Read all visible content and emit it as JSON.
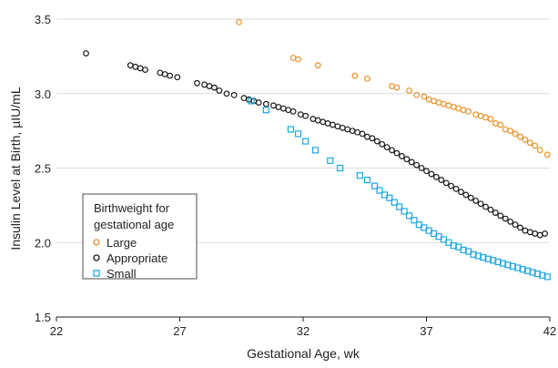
{
  "chart_data": {
    "type": "scatter",
    "xlabel": "Gestational Age, wk",
    "ylabel": "Insulin Level at Birth, µIU/mL",
    "xlim": [
      22,
      42
    ],
    "ylim": [
      1.5,
      3.5
    ],
    "xticks": [
      22,
      27,
      32,
      37,
      42
    ],
    "yticks": [
      1.5,
      2.0,
      2.5,
      3.0,
      3.5
    ],
    "ytick_labels": [
      "1.5",
      "2.0",
      "2.5",
      "3.0",
      "3.5"
    ],
    "grid": "horizontal",
    "legend": {
      "title_lines": [
        "Birthweight for",
        "gestational age"
      ],
      "placement": "lower-left",
      "entries": [
        "Large",
        "Appropriate",
        "Small"
      ]
    },
    "series": [
      {
        "name": "Large",
        "color": "#e8902a",
        "marker": "circle",
        "x": [
          29.4,
          31.6,
          31.8,
          32.6,
          34.1,
          34.6,
          35.6,
          35.8,
          36.3,
          36.6,
          36.9,
          37.1,
          37.3,
          37.5,
          37.7,
          37.9,
          38.1,
          38.3,
          38.5,
          38.7,
          39.0,
          39.2,
          39.4,
          39.6,
          39.8,
          40.0,
          40.2,
          40.4,
          40.6,
          40.8,
          41.0,
          41.2,
          41.4,
          41.6,
          41.9
        ],
        "y": [
          3.48,
          3.24,
          3.23,
          3.19,
          3.12,
          3.1,
          3.05,
          3.04,
          3.02,
          2.99,
          2.98,
          2.96,
          2.95,
          2.94,
          2.93,
          2.92,
          2.91,
          2.9,
          2.89,
          2.88,
          2.86,
          2.85,
          2.84,
          2.83,
          2.8,
          2.79,
          2.76,
          2.75,
          2.73,
          2.71,
          2.69,
          2.67,
          2.65,
          2.62,
          2.59
        ]
      },
      {
        "name": "Appropriate",
        "color": "#1a1a1a",
        "marker": "circle",
        "x": [
          23.2,
          25.0,
          25.2,
          25.4,
          25.6,
          26.2,
          26.4,
          26.6,
          26.9,
          27.7,
          28.0,
          28.2,
          28.4,
          28.6,
          28.9,
          29.2,
          29.6,
          29.8,
          30.0,
          30.2,
          30.5,
          30.8,
          31.0,
          31.2,
          31.4,
          31.6,
          31.9,
          32.1,
          32.4,
          32.6,
          32.8,
          33.0,
          33.2,
          33.4,
          33.6,
          33.8,
          34.0,
          34.2,
          34.4,
          34.6,
          34.8,
          35.0,
          35.2,
          35.4,
          35.6,
          35.8,
          36.0,
          36.2,
          36.4,
          36.6,
          36.8,
          37.0,
          37.2,
          37.4,
          37.6,
          37.8,
          38.0,
          38.2,
          38.4,
          38.6,
          38.8,
          39.0,
          39.2,
          39.4,
          39.6,
          39.8,
          40.0,
          40.2,
          40.4,
          40.6,
          40.8,
          41.0,
          41.2,
          41.4,
          41.6,
          41.8
        ],
        "y": [
          3.27,
          3.19,
          3.18,
          3.17,
          3.16,
          3.14,
          3.13,
          3.12,
          3.11,
          3.07,
          3.06,
          3.05,
          3.04,
          3.02,
          3.0,
          2.99,
          2.97,
          2.96,
          2.95,
          2.94,
          2.93,
          2.92,
          2.91,
          2.9,
          2.89,
          2.88,
          2.86,
          2.85,
          2.83,
          2.82,
          2.81,
          2.8,
          2.79,
          2.78,
          2.77,
          2.76,
          2.75,
          2.74,
          2.73,
          2.71,
          2.7,
          2.68,
          2.66,
          2.64,
          2.62,
          2.6,
          2.58,
          2.56,
          2.54,
          2.52,
          2.5,
          2.48,
          2.46,
          2.44,
          2.42,
          2.4,
          2.38,
          2.36,
          2.34,
          2.32,
          2.3,
          2.28,
          2.26,
          2.24,
          2.22,
          2.2,
          2.18,
          2.16,
          2.14,
          2.12,
          2.1,
          2.08,
          2.07,
          2.06,
          2.05,
          2.06
        ]
      },
      {
        "name": "Small",
        "color": "#1ea7e1",
        "marker": "square",
        "x": [
          29.9,
          30.5,
          31.5,
          31.8,
          32.1,
          32.5,
          33.1,
          33.5,
          34.3,
          34.6,
          34.9,
          35.1,
          35.3,
          35.5,
          35.7,
          35.9,
          36.1,
          36.3,
          36.5,
          36.7,
          36.9,
          37.1,
          37.3,
          37.5,
          37.7,
          37.9,
          38.1,
          38.3,
          38.5,
          38.7,
          38.9,
          39.1,
          39.3,
          39.5,
          39.7,
          39.9,
          40.1,
          40.3,
          40.5,
          40.7,
          40.9,
          41.1,
          41.3,
          41.5,
          41.7,
          41.9
        ],
        "y": [
          2.95,
          2.89,
          2.76,
          2.73,
          2.68,
          2.62,
          2.55,
          2.5,
          2.45,
          2.42,
          2.38,
          2.35,
          2.32,
          2.3,
          2.27,
          2.24,
          2.21,
          2.18,
          2.15,
          2.12,
          2.1,
          2.08,
          2.06,
          2.04,
          2.02,
          2.0,
          1.98,
          1.97,
          1.95,
          1.94,
          1.92,
          1.91,
          1.9,
          1.89,
          1.88,
          1.87,
          1.86,
          1.85,
          1.84,
          1.83,
          1.82,
          1.81,
          1.8,
          1.79,
          1.78,
          1.77
        ]
      }
    ]
  }
}
